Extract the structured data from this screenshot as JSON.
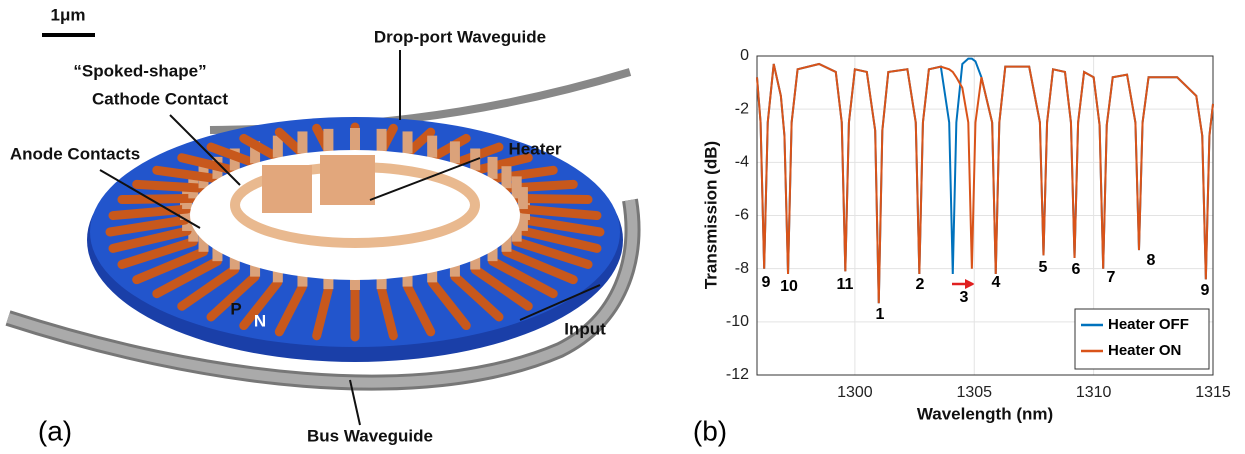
{
  "figure_a": {
    "scale_bar": "1μm",
    "labels": [
      "Drop-port Waveguide",
      "“Spoked-shape”",
      "Cathode Contact",
      "Heater",
      "Anode Contacts",
      "P",
      "N",
      "Input",
      "Bus Waveguide"
    ],
    "panel": "(a)"
  },
  "chart_data": {
    "type": "line",
    "panel": "(b)",
    "x_label": "Wavelength (nm)",
    "y_label": "Transmission (dB)",
    "x": [
      1295.9,
      1296.05,
      1296.2,
      1296.35,
      1296.6,
      1296.9,
      1297.05,
      1297.2,
      1297.35,
      1297.6,
      1298.5,
      1299.2,
      1299.45,
      1299.6,
      1299.75,
      1300.0,
      1300.5,
      1300.85,
      1301.0,
      1301.15,
      1301.4,
      1302.2,
      1302.55,
      1302.7,
      1302.85,
      1303.1,
      1303.6,
      1303.95,
      1304.1,
      1304.25,
      1304.5,
      1304.75,
      1304.9,
      1305.05,
      1305.3,
      1305.75,
      1305.9,
      1306.05,
      1306.3,
      1307.3,
      1307.75,
      1307.9,
      1308.05,
      1308.3,
      1308.8,
      1309.05,
      1309.2,
      1309.35,
      1309.6,
      1310.0,
      1310.25,
      1310.4,
      1310.55,
      1310.8,
      1311.4,
      1311.75,
      1311.9,
      1312.05,
      1312.3,
      1313.5,
      1314.3,
      1314.55,
      1314.7,
      1314.85,
      1315.0
    ],
    "series": [
      {
        "name": "Heater OFF",
        "color": "#0072bd",
        "values": [
          -0.8,
          -2.5,
          -8.0,
          -2.5,
          -0.3,
          -1.5,
          -3,
          -8.2,
          -2.5,
          -0.5,
          -0.3,
          -0.6,
          -2.5,
          -8.1,
          -2.5,
          -0.5,
          -0.6,
          -2.8,
          -9.3,
          -2.8,
          -0.6,
          -0.5,
          -2.5,
          -8.2,
          -2.5,
          -0.5,
          -0.4,
          -2.5,
          -8.2,
          -2.5,
          -0.3,
          -0.1,
          -0.1,
          -0.2,
          -0.8,
          -2.5,
          -8.2,
          -2.5,
          -0.4,
          -0.4,
          -2.5,
          -7.5,
          -2.5,
          -0.5,
          -0.6,
          -2.5,
          -7.6,
          -2.5,
          -0.6,
          -0.8,
          -2.6,
          -8.0,
          -2.6,
          -0.8,
          -0.7,
          -2.5,
          -7.3,
          -2.5,
          -0.8,
          -0.8,
          -1.5,
          -3,
          -8.4,
          -3,
          -1.8
        ]
      },
      {
        "name": "Heater ON",
        "color": "#d95319",
        "values": [
          -0.8,
          -2.5,
          -8.0,
          -2.5,
          -0.3,
          -1.5,
          -3,
          -8.2,
          -2.5,
          -0.5,
          -0.3,
          -0.6,
          -2.5,
          -8.1,
          -2.5,
          -0.5,
          -0.6,
          -2.8,
          -9.3,
          -2.8,
          -0.6,
          -0.5,
          -2.5,
          -8.2,
          -2.5,
          -0.5,
          -0.4,
          -0.5,
          -0.6,
          -0.8,
          -1.2,
          -2.5,
          -8.0,
          -2.5,
          -0.8,
          -2.5,
          -8.2,
          -2.5,
          -0.4,
          -0.4,
          -2.5,
          -7.5,
          -2.5,
          -0.5,
          -0.6,
          -2.5,
          -7.6,
          -2.5,
          -0.6,
          -0.8,
          -2.6,
          -8.0,
          -2.6,
          -0.8,
          -0.7,
          -2.5,
          -7.3,
          -2.5,
          -0.8,
          -0.8,
          -1.5,
          -3,
          -8.4,
          -3,
          -1.8
        ]
      }
    ],
    "annotations": [
      "9",
      "10",
      "11",
      "1",
      "2",
      "3",
      "4",
      "5",
      "6",
      "7",
      "8",
      "9"
    ],
    "xlim": [
      1295.9,
      1315
    ],
    "ylim": [
      -12,
      0
    ],
    "xticks": [
      1300,
      1305,
      1310,
      1315
    ],
    "yticks": [
      -12,
      -10,
      -8,
      -6,
      -4,
      -2,
      0
    ],
    "grid": true,
    "legend": "lower-right"
  }
}
